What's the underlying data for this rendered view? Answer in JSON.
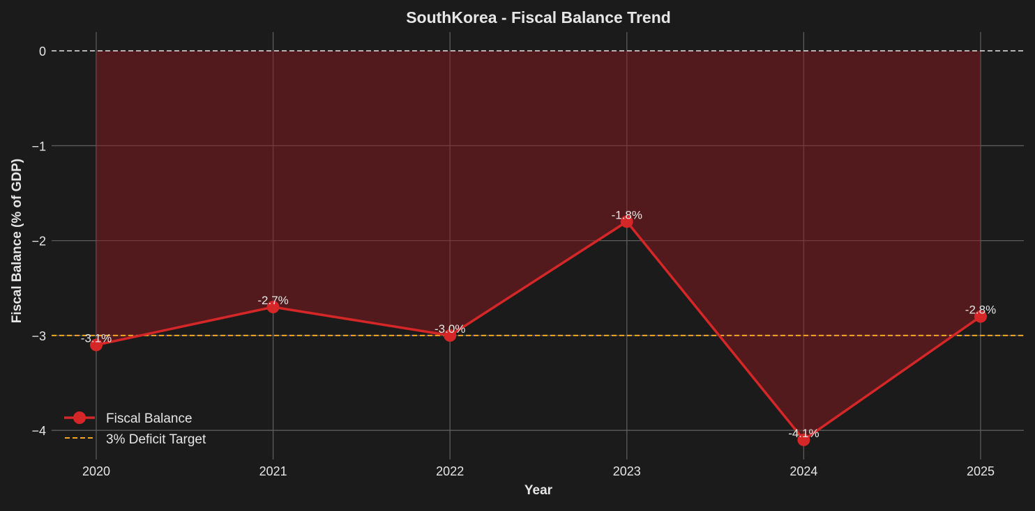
{
  "chart_data": {
    "type": "line",
    "title": "SouthKorea - Fiscal Balance Trend",
    "xlabel": "Year",
    "ylabel": "Fiscal Balance (% of GDP)",
    "categories": [
      "2020",
      "2021",
      "2022",
      "2023",
      "2024",
      "2025"
    ],
    "series": [
      {
        "name": "Fiscal Balance",
        "values": [
          -3.1,
          -2.7,
          -3.0,
          -1.8,
          -4.1,
          -2.8
        ],
        "color": "#d62728",
        "marker": "circle",
        "fill_to_zero": true,
        "fill_color": "#5a1e22"
      }
    ],
    "reference_lines": [
      {
        "name": "zero",
        "y": 0,
        "style": "dashed",
        "color": "#e6e6e6"
      },
      {
        "name": "3% Deficit Target",
        "y": -3,
        "style": "dashed",
        "color": "#f5a623"
      }
    ],
    "data_labels": [
      "-3.1%",
      "-2.7%",
      "-3.0%",
      "-1.8%",
      "-4.1%",
      "-2.8%"
    ],
    "yticks": [
      "0",
      "−1",
      "−2",
      "−3",
      "−4"
    ],
    "ytick_values": [
      0,
      -1,
      -2,
      -3,
      -4
    ],
    "ylim": [
      -4.2,
      0.2
    ],
    "grid": true,
    "legend": {
      "position": "lower left",
      "entries": [
        "Fiscal Balance",
        "3% Deficit Target"
      ]
    }
  }
}
